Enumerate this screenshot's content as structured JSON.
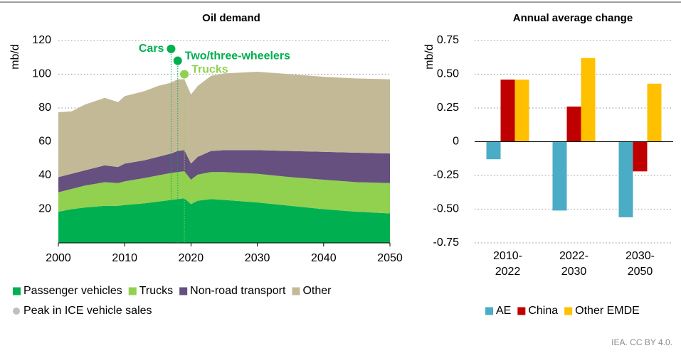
{
  "chart_data": [
    {
      "type": "area",
      "title": "Oil demand",
      "y_label": "mb/d",
      "x": [
        2000,
        2002,
        2004,
        2007,
        2009,
        2010,
        2013,
        2015,
        2017,
        2018,
        2019,
        2020,
        2021,
        2023,
        2025,
        2030,
        2035,
        2040,
        2045,
        2050
      ],
      "series": [
        {
          "name": "Passenger vehicles",
          "color": "#00b050",
          "values": [
            18.5,
            20,
            21,
            22,
            22,
            22.5,
            23.5,
            24.5,
            25.5,
            26,
            26.5,
            23,
            25,
            26,
            25.5,
            24,
            22,
            20,
            18.5,
            17.5
          ]
        },
        {
          "name": "Trucks",
          "color": "#92d050",
          "values": [
            11.5,
            12,
            13,
            14,
            13.5,
            14,
            15,
            15.5,
            16,
            16,
            16,
            14.5,
            15.5,
            16,
            16.5,
            17,
            17,
            17.5,
            17.5,
            18
          ]
        },
        {
          "name": "Non-road transport",
          "color": "#65507f",
          "values": [
            9,
            9,
            9,
            10,
            9.5,
            10.5,
            10.5,
            11,
            11.5,
            12.5,
            12.5,
            9.5,
            10.5,
            12.5,
            13,
            14,
            15.5,
            16.5,
            17.5,
            17.5
          ]
        },
        {
          "name": "Other",
          "color": "#c4b996",
          "values": [
            38.5,
            37,
            39,
            40,
            38.5,
            40,
            41,
            42,
            42,
            42.5,
            42,
            41,
            42,
            44.5,
            45.5,
            46.5,
            45.5,
            44.5,
            44,
            44
          ]
        }
      ],
      "peaks": [
        {
          "name": "Cars",
          "x": 2017,
          "y": 115,
          "color": "#00b050"
        },
        {
          "name": "Two/three-wheelers",
          "x": 2018,
          "y": 108,
          "color": "#00b050"
        },
        {
          "name": "Trucks",
          "x": 2019,
          "y": 100,
          "color": "#92d050"
        }
      ],
      "peaks_legend": "Peak in ICE vehicle sales",
      "peaks_legend_color": "#bfbfbf",
      "xlim": [
        2000,
        2050
      ],
      "xticks": [
        2000,
        2010,
        2020,
        2030,
        2040,
        2050
      ],
      "ylim": [
        0,
        120
      ],
      "yticks": [
        20,
        40,
        60,
        80,
        100,
        120
      ],
      "grid": true
    },
    {
      "type": "bar",
      "title": "Annual average change",
      "y_label": "mb/d",
      "categories": [
        "2010-2022",
        "2022-2030",
        "2030-2050"
      ],
      "series": [
        {
          "name": "AE",
          "color": "#4bacc6",
          "values": [
            -0.13,
            -0.51,
            -0.56
          ]
        },
        {
          "name": "China",
          "color": "#c00000",
          "values": [
            0.46,
            0.26,
            -0.22
          ]
        },
        {
          "name": "Other EMDE",
          "color": "#ffc000",
          "values": [
            0.46,
            0.62,
            0.43
          ]
        }
      ],
      "ylim": [
        -0.75,
        0.75
      ],
      "yticks": [
        0.75,
        {
          "value": 0.5,
          "label": "0.50"
        },
        0.25,
        0,
        -0.25,
        {
          "value": -0.5,
          "label": "-0.50"
        },
        -0.75
      ],
      "grid": true
    }
  ],
  "source": "IEA. CC BY 4.0."
}
